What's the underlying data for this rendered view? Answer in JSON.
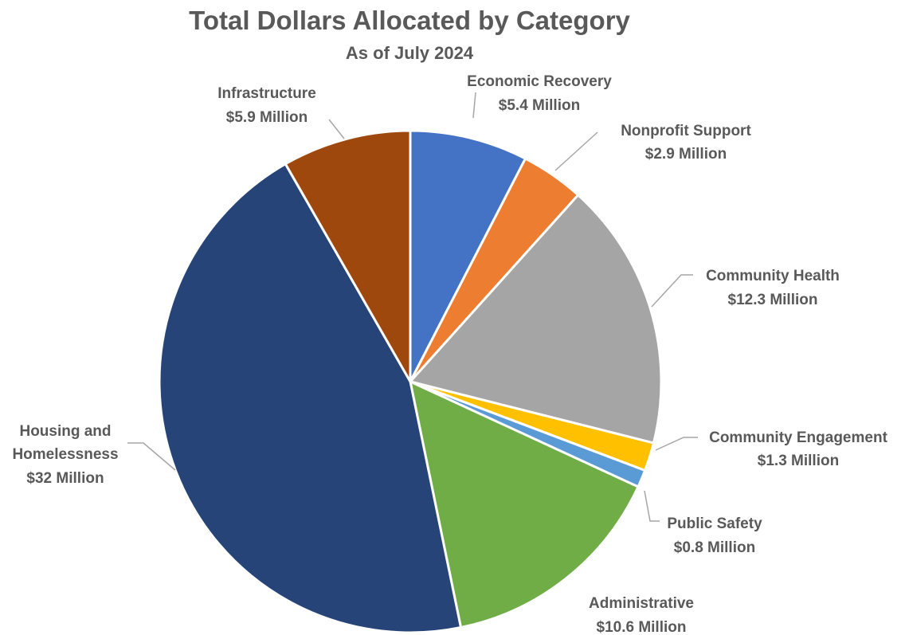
{
  "chart_data": {
    "type": "pie",
    "title": "Total Dollars Allocated by Category",
    "subtitle": "As of July 2024",
    "slices": [
      {
        "name": "Economic Recovery",
        "value": 5.4,
        "value_label": "$5.4 Million",
        "color": "#4472c4"
      },
      {
        "name": "Nonprofit Support",
        "value": 2.9,
        "value_label": "$2.9 Million",
        "color": "#ed7d31"
      },
      {
        "name": "Community Health",
        "value": 12.3,
        "value_label": "$12.3 Million",
        "color": "#a5a5a5"
      },
      {
        "name": "Community Engagement",
        "value": 1.3,
        "value_label": "$1.3 Million",
        "color": "#ffc000"
      },
      {
        "name": "Public Safety",
        "value": 0.8,
        "value_label": "$0.8 Million",
        "color": "#5b9bd5"
      },
      {
        "name": "Administrative",
        "value": 10.6,
        "value_label": "$10.6 Million",
        "color": "#70ad47"
      },
      {
        "name": "Housing and Homelessness",
        "value": 32,
        "value_label": "$32 Million",
        "color": "#264478"
      },
      {
        "name": "Infrastructure",
        "value": 5.9,
        "value_label": "$5.9 Million",
        "color": "#9e480e"
      }
    ],
    "start_angle": "12 o'clock",
    "direction": "clockwise",
    "legend": "none",
    "grid": false
  }
}
